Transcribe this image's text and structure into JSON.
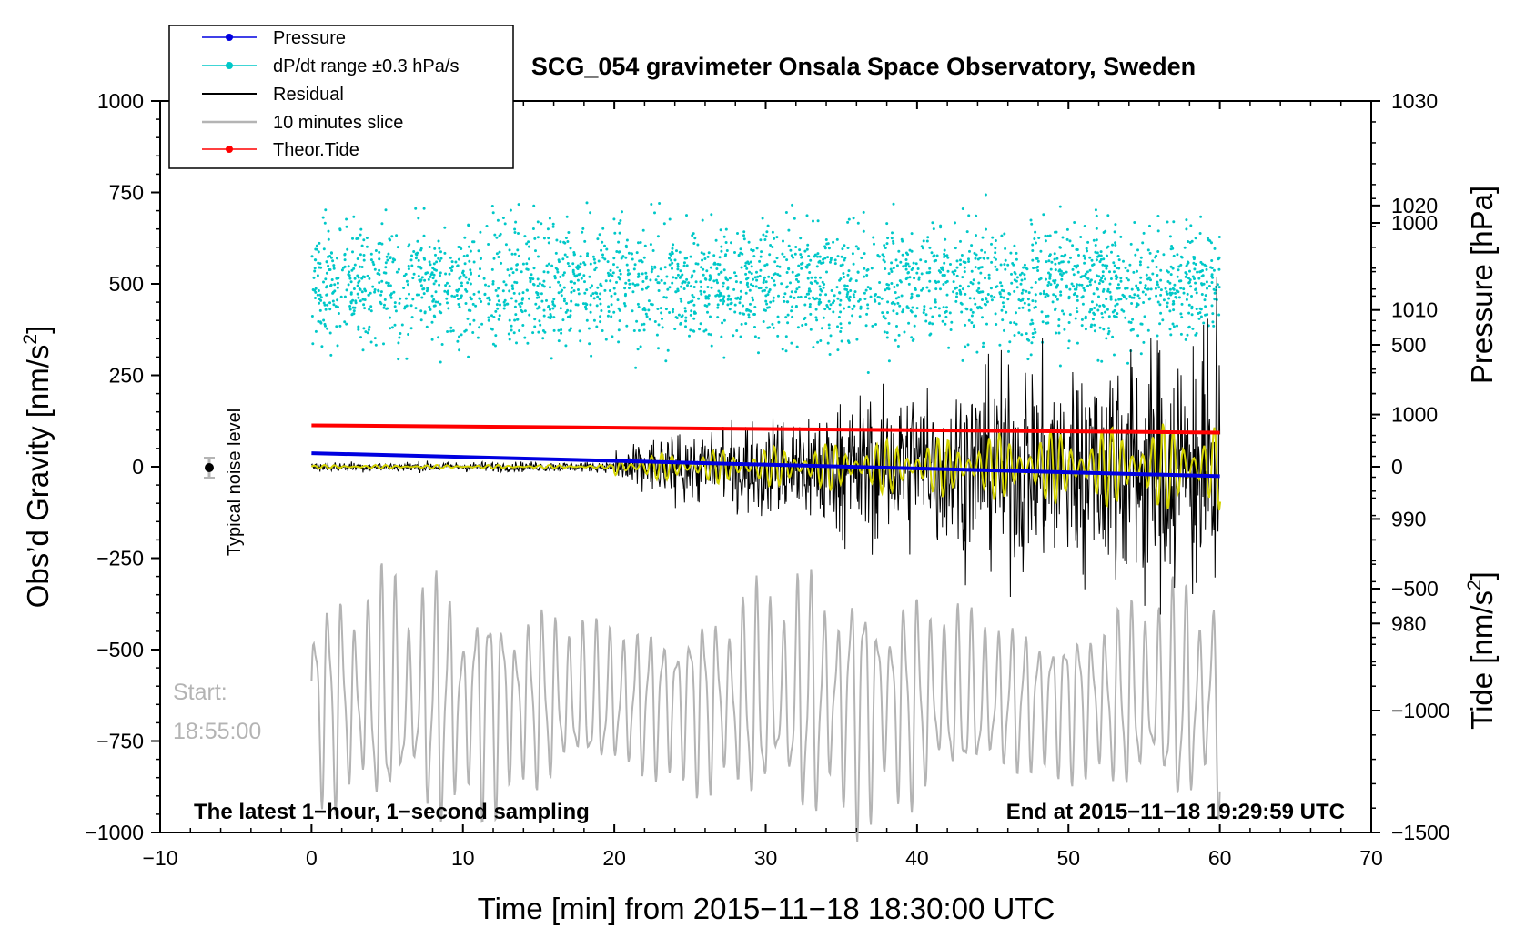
{
  "chart_data": {
    "type": "line",
    "title": "SCG_054 gravimeter Onsala Space Observatory, Sweden",
    "xlabel": "Time [min] from 2015−11−18 18:30:00 UTC",
    "ylabel_left_main": "Obs’d Gravity [nm/s",
    "ylabel_left_sup": "2",
    "ylabel_left_close": "]",
    "ylabel_right_top": "Pressure [hPa]",
    "ylabel_right_bottom_main": "Tide [nm/s",
    "ylabel_right_bottom_sup": "2",
    "ylabel_right_bottom_close": "]",
    "xlim": [
      -10,
      70
    ],
    "ylim_left": [
      -1000,
      1000
    ],
    "ylim_pressure": [
      960,
      1030
    ],
    "ylim_tide": [
      -1500,
      1500
    ],
    "x_ticks": [
      "−10",
      "0",
      "10",
      "20",
      "30",
      "40",
      "50",
      "60",
      "70"
    ],
    "y_ticks_left": [
      "1000",
      "750",
      "500",
      "250",
      "0",
      "−250",
      "−500",
      "−750",
      "−1000"
    ],
    "y_ticks_pressure": [
      "1030",
      "1020",
      "1010",
      "1000",
      "990",
      "980"
    ],
    "y_ticks_tide": [
      "1000",
      "500",
      "0",
      "−500",
      "−1000",
      "−1500"
    ],
    "legend": [
      {
        "label": "Pressure",
        "color": "#0000e0"
      },
      {
        "label": "dP/dt range ±0.3 hPa/s",
        "color": "#00c8c8"
      },
      {
        "label": "Residual",
        "color": "#000000"
      },
      {
        "label": "10 minutes slice",
        "color": "#b4b4b4"
      },
      {
        "label": "Theor.Tide",
        "color": "#ff0000"
      }
    ],
    "series": [
      {
        "name": "Pressure",
        "units": "hPa",
        "x": [
          0,
          60
        ],
        "values": [
          996.3,
          994.1
        ]
      },
      {
        "name": "Theor.Tide",
        "units": "nm/s2",
        "x": [
          0,
          60
        ],
        "values": [
          170,
          140
        ]
      },
      {
        "name": "Residual",
        "units": "nm/s2",
        "baseline": 0,
        "quiet_amplitude_to_min_20": 15,
        "peak_amplitude_after_min_20": 450
      },
      {
        "name": "dP/dt range ±0.3 hPa/s",
        "units": "nm/s2",
        "center": 500,
        "spread": 250
      },
      {
        "name": "10 minutes slice",
        "units": "nm/s2",
        "center": -640,
        "peak_amplitude": 400
      }
    ],
    "noise_marker": {
      "x": -7,
      "y": 0,
      "error": 20
    },
    "annotations": {
      "noise_label": "Typical noise level",
      "start_label": "Start:",
      "start_time": "18:55:00",
      "bottom_left": "The latest 1−hour, 1−second sampling",
      "bottom_right": "End at 2015−11−18 19:29:59 UTC"
    }
  }
}
